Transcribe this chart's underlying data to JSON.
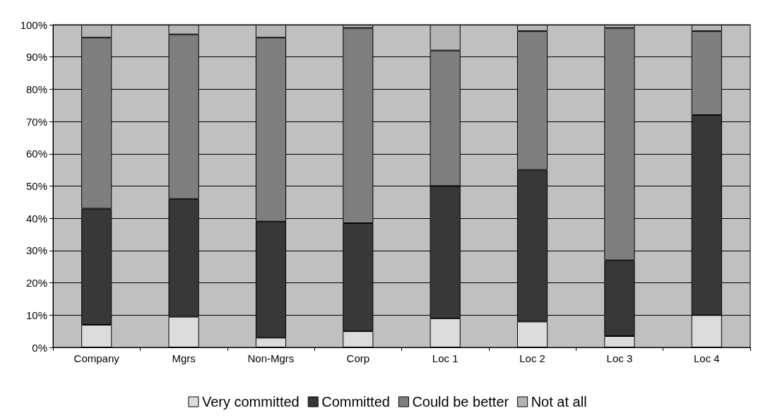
{
  "chart_data": {
    "type": "bar",
    "stacked": true,
    "categories": [
      "Company",
      "Mgrs",
      "Non-Mgrs",
      "Corp",
      "Loc 1",
      "Loc 2",
      "Loc 3",
      "Loc 4"
    ],
    "series": [
      {
        "name": "Very committed",
        "color": "#dcdcdc",
        "values": [
          7,
          9.5,
          3,
          5,
          9,
          8,
          3.5,
          10
        ]
      },
      {
        "name": "Committed",
        "color": "#383838",
        "values": [
          36,
          36.5,
          36,
          33.5,
          41,
          47,
          23.5,
          62
        ]
      },
      {
        "name": "Could be better",
        "color": "#7f7f7f",
        "values": [
          53,
          51,
          57,
          60.5,
          42,
          43,
          72,
          26
        ]
      },
      {
        "name": "Not at all",
        "color": "#b4b4b4",
        "values": [
          4,
          3,
          4,
          1,
          8,
          2,
          1,
          2
        ]
      }
    ],
    "ylim": [
      0,
      100
    ],
    "yticks": [
      {
        "value": 0,
        "label": "0%"
      },
      {
        "value": 10,
        "label": "10%"
      },
      {
        "value": 20,
        "label": "20%"
      },
      {
        "value": 30,
        "label": "30%"
      },
      {
        "value": 40,
        "label": "40%"
      },
      {
        "value": 50,
        "label": "50%"
      },
      {
        "value": 60,
        "label": "60%"
      },
      {
        "value": 70,
        "label": "70%"
      },
      {
        "value": 80,
        "label": "80%"
      },
      {
        "value": 90,
        "label": "90%"
      },
      {
        "value": 100,
        "label": "100%"
      }
    ],
    "grid": "y",
    "legend": "bottom"
  }
}
